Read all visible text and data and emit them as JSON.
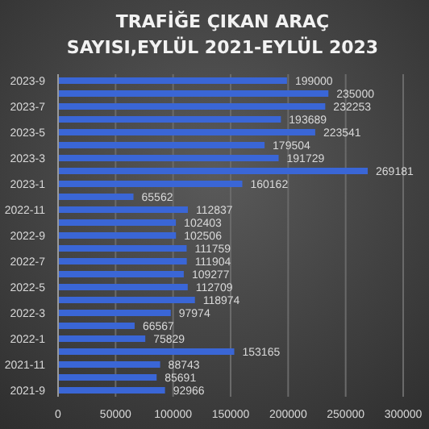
{
  "chart_data": {
    "type": "bar",
    "orientation": "horizontal",
    "title": "TRAFİĞE ÇIKAN ARAÇ SAYISI,EYLÜL 2021-EYLÜL 2023",
    "categories": [
      "2023-9",
      null,
      "2023-7",
      null,
      "2023-5",
      null,
      "2023-3",
      null,
      "2023-1",
      null,
      "2022-11",
      null,
      "2022-9",
      null,
      "2022-7",
      null,
      "2022-5",
      null,
      "2022-3",
      null,
      "2022-1",
      null,
      "2021-11",
      null,
      "2021-9"
    ],
    "values": [
      199000,
      235000,
      232253,
      193689,
      223541,
      179504,
      191729,
      269181,
      160162,
      65562,
      112837,
      102403,
      102506,
      111759,
      111904,
      109277,
      112709,
      118974,
      97974,
      66567,
      75829,
      153165,
      88743,
      85691,
      92966
    ],
    "color": "#3a66d6",
    "data_labels": true,
    "xlim": [
      0,
      300000
    ],
    "xticks": [
      0,
      50000,
      100000,
      150000,
      200000,
      250000,
      300000
    ],
    "grid": "x"
  }
}
